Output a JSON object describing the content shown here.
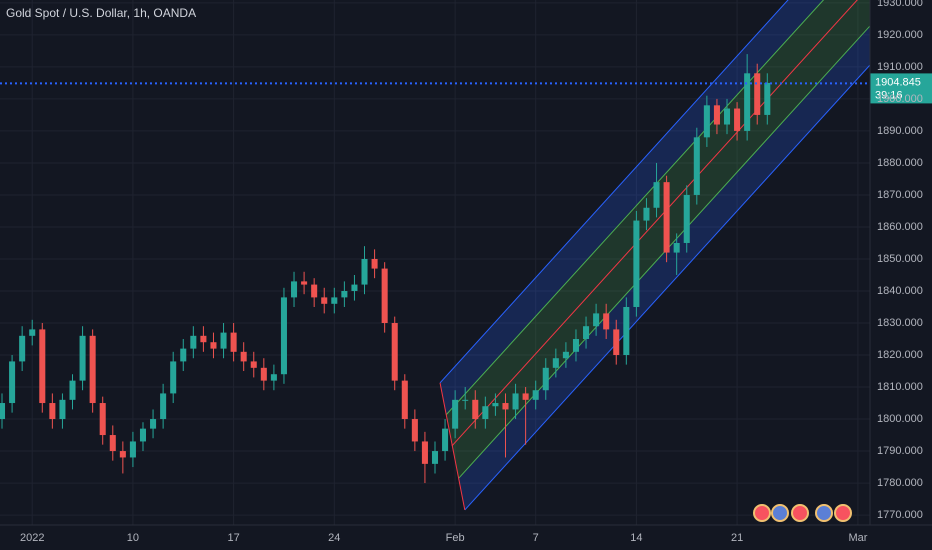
{
  "chart_data": {
    "type": "candlestick",
    "title": "Gold Spot / U.S. Dollar, 1h, OANDA",
    "x": [
      -1.5,
      -1,
      -0.5,
      0,
      0.5,
      1,
      1.5,
      2,
      2.5,
      3,
      3.5,
      4,
      4.5,
      5,
      5.5,
      6,
      6.5,
      7,
      7.5,
      8,
      8.5,
      9,
      9.5,
      10,
      10.5,
      11,
      11.5,
      12,
      12.5,
      13,
      13.5,
      14,
      14.5,
      15,
      15.5,
      16,
      16.5,
      17,
      17.5,
      18,
      18.5,
      19,
      19.5,
      20,
      20.5,
      21,
      21.5,
      22,
      22.5,
      23,
      23.5,
      24,
      24.5,
      25,
      25.5,
      26,
      26.5,
      27,
      27.5,
      28,
      28.5,
      29,
      29.5,
      30,
      30.5,
      31,
      31.5,
      32,
      32.5,
      33,
      33.5,
      34,
      34.5,
      35,
      35.5,
      36,
      36.5
    ],
    "open": [
      1800,
      1805,
      1818,
      1826,
      1828,
      1805,
      1800,
      1806,
      1812,
      1826,
      1805,
      1795,
      1790,
      1788,
      1793,
      1797,
      1800,
      1808,
      1818,
      1822,
      1826,
      1824,
      1822,
      1827,
      1821,
      1818,
      1816,
      1812,
      1814,
      1838,
      1843,
      1842,
      1838,
      1836,
      1838,
      1840,
      1842,
      1850,
      1847,
      1830,
      1812,
      1800,
      1793,
      1786,
      1790,
      1797,
      1806,
      1806,
      1800,
      1804,
      1805,
      1803,
      1808,
      1806,
      1809,
      1816,
      1819,
      1821,
      1825,
      1829,
      1833,
      1828,
      1820,
      1835,
      1862,
      1866,
      1874,
      1852,
      1855,
      1870,
      1888,
      1898,
      1892,
      1897,
      1890,
      1908,
      1895
    ],
    "high": [
      1808,
      1820,
      1829,
      1831,
      1830,
      1808,
      1808,
      1814,
      1829,
      1828,
      1807,
      1798,
      1793,
      1796,
      1799,
      1803,
      1811,
      1821,
      1825,
      1829,
      1829,
      1827,
      1830,
      1830,
      1824,
      1821,
      1819,
      1817,
      1841,
      1846,
      1846,
      1844,
      1841,
      1841,
      1843,
      1845,
      1854,
      1853,
      1849,
      1832,
      1814,
      1803,
      1796,
      1793,
      1800,
      1809,
      1810,
      1809,
      1807,
      1808,
      1808,
      1811,
      1810,
      1812,
      1819,
      1822,
      1824,
      1828,
      1832,
      1836,
      1836,
      1831,
      1838,
      1865,
      1869,
      1880,
      1876,
      1858,
      1873,
      1891,
      1901,
      1900,
      1900,
      1899,
      1914,
      1911,
      1908
    ],
    "low": [
      1797,
      1802,
      1815,
      1823,
      1802,
      1797,
      1797,
      1803,
      1809,
      1802,
      1792,
      1787,
      1783,
      1785,
      1790,
      1794,
      1797,
      1805,
      1815,
      1819,
      1821,
      1819,
      1819,
      1818,
      1815,
      1813,
      1809,
      1809,
      1811,
      1835,
      1839,
      1835,
      1833,
      1833,
      1835,
      1837,
      1839,
      1844,
      1827,
      1809,
      1797,
      1790,
      1780,
      1783,
      1787,
      1794,
      1803,
      1797,
      1797,
      1801,
      1788,
      1800,
      1792,
      1803,
      1806,
      1813,
      1816,
      1818,
      1822,
      1826,
      1825,
      1817,
      1817,
      1832,
      1859,
      1863,
      1849,
      1845,
      1852,
      1867,
      1885,
      1889,
      1889,
      1887,
      1887,
      1892,
      1892
    ],
    "close": [
      1805,
      1818,
      1826,
      1828,
      1805,
      1800,
      1806,
      1812,
      1826,
      1805,
      1795,
      1790,
      1788,
      1793,
      1797,
      1800,
      1808,
      1818,
      1822,
      1826,
      1824,
      1822,
      1827,
      1821,
      1818,
      1816,
      1812,
      1814,
      1838,
      1843,
      1842,
      1838,
      1836,
      1838,
      1840,
      1842,
      1850,
      1847,
      1830,
      1812,
      1800,
      1793,
      1786,
      1790,
      1797,
      1806,
      1806,
      1800,
      1804,
      1805,
      1803,
      1808,
      1806,
      1809,
      1816,
      1819,
      1821,
      1825,
      1829,
      1833,
      1828,
      1820,
      1835,
      1862,
      1866,
      1874,
      1852,
      1855,
      1870,
      1888,
      1898,
      1892,
      1897,
      1890,
      1908,
      1895,
      1905
    ],
    "up_color": "#26a69a",
    "down_color": "#ef5350",
    "xlim": [
      -1.6,
      41.6
    ],
    "xticks": [
      {
        "value": 0,
        "label": "2022"
      },
      {
        "value": 5,
        "label": "10"
      },
      {
        "value": 10,
        "label": "17"
      },
      {
        "value": 15,
        "label": "24"
      },
      {
        "value": 21,
        "label": "Feb"
      },
      {
        "value": 25,
        "label": "7"
      },
      {
        "value": 30,
        "label": "14"
      },
      {
        "value": 35,
        "label": "21"
      },
      {
        "value": 41,
        "label": "Mar"
      }
    ],
    "ylim": [
      1766.9,
      1930.9
    ],
    "yticks": [
      {
        "value": 1770,
        "label": "1770.000"
      },
      {
        "value": 1780,
        "label": "1780.000"
      },
      {
        "value": 1790,
        "label": "1790.000"
      },
      {
        "value": 1800,
        "label": "1800.000"
      },
      {
        "value": 1810,
        "label": "1810.000"
      },
      {
        "value": 1820,
        "label": "1820.000"
      },
      {
        "value": 1830,
        "label": "1830.000"
      },
      {
        "value": 1840,
        "label": "1840.000"
      },
      {
        "value": 1850,
        "label": "1850.000"
      },
      {
        "value": 1860,
        "label": "1860.000"
      },
      {
        "value": 1870,
        "label": "1870.000"
      },
      {
        "value": 1880,
        "label": "1880.000"
      },
      {
        "value": 1890,
        "label": "1890.000"
      },
      {
        "value": 1900,
        "label": "1900.000"
      },
      {
        "value": 1910,
        "label": "1910.000"
      },
      {
        "value": 1920,
        "label": "1920.000"
      },
      {
        "value": 1930,
        "label": "1930.000"
      }
    ],
    "grid": true,
    "last_price": 1904.845,
    "last_price_color": "#26a69a",
    "countdown": "39:16",
    "channel": {
      "upper": {
        "x": [
          20.25,
          41.6
        ],
        "y": [
          1811.3,
          1959.1
        ],
        "color": "#2962ff"
      },
      "upper_inner": {
        "x": [
          20.55,
          41.6
        ],
        "y": [
          1801.3,
          1946.9
        ],
        "color": "#4caf50"
      },
      "middle": {
        "x": [
          20.84,
          41.6
        ],
        "y": [
          1791.6,
          1935.3
        ],
        "color": "#f23645"
      },
      "lower_inner": {
        "x": [
          21.19,
          41.6
        ],
        "y": [
          1781.6,
          1922.8
        ],
        "color": "#4caf50"
      },
      "lower": {
        "x": [
          21.48,
          41.6
        ],
        "y": [
          1771.6,
          1910.6
        ],
        "color": "#2962ff"
      }
    }
  }
}
